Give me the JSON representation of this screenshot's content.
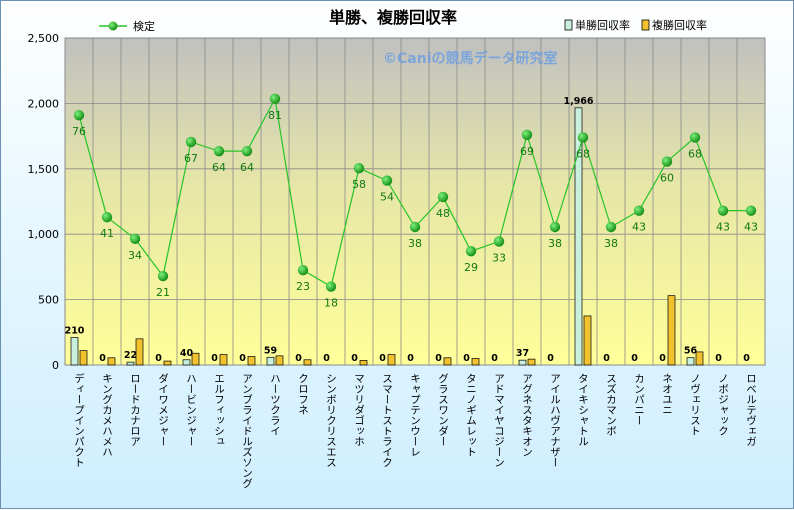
{
  "chart_data": {
    "type": "bar",
    "title": "単勝、複勝回収率",
    "watermark": "©Caniの競馬データ研究室",
    "ylim": [
      0,
      2500
    ],
    "yticks": [
      0,
      500,
      1000,
      1500,
      2000,
      2500
    ],
    "ytick_labels": [
      "0",
      "500",
      "1,000",
      "1,500",
      "2,000",
      "2,500"
    ],
    "grid": true,
    "legend_position": "top",
    "categories": [
      "ディープインパクト",
      "キングカメハメハ",
      "ロードカナロア",
      "ダイワメジャー",
      "ハービンジャー",
      "エルフィッシュ",
      "アンブライドルズソング",
      "ハーツクライ",
      "クロフネ",
      "シンボリクリスエス",
      "マツリダゴッホ",
      "スマートストライク",
      "キャプテンウーレ",
      "グラスワンダー",
      "タニノギムレット",
      "アドマイヤコジーン",
      "アグネスタキオン",
      "アイルハヴアナザー",
      "タイキシャトル",
      "スズカマンボ",
      "カンパニー",
      "ネオユニ",
      "ノヴェリスト",
      "ノボジャック",
      "ロベルテヴェガ"
    ],
    "series": [
      {
        "name": "単勝回収率",
        "kind": "bar",
        "color": "#c8f0dc",
        "values": [
          210,
          0,
          22,
          0,
          40,
          0,
          0,
          59,
          0,
          0,
          0,
          0,
          0,
          0,
          0,
          0,
          37,
          0,
          1966,
          0,
          0,
          0,
          56,
          0,
          0
        ],
        "labels": [
          "210",
          "0",
          "22",
          "0",
          "40",
          "0",
          "0",
          "59",
          "0",
          "0",
          "0",
          "0",
          "0",
          "0",
          "0",
          "0",
          "37",
          "0",
          "1,966",
          "0",
          "0",
          "0",
          "56",
          "0",
          "0"
        ]
      },
      {
        "name": "複勝回収率",
        "kind": "bar",
        "color": "#f2c12e",
        "values": [
          110,
          55,
          200,
          30,
          90,
          80,
          65,
          70,
          40,
          0,
          35,
          80,
          0,
          55,
          50,
          0,
          45,
          0,
          375,
          0,
          0,
          530,
          100,
          0,
          0
        ]
      },
      {
        "name": "検定",
        "kind": "line",
        "axis": "secondary",
        "color": "#27c427",
        "marker_color": "#169a16",
        "values": [
          76,
          41,
          34,
          21,
          67,
          64,
          64,
          81,
          23,
          18,
          58,
          54,
          38,
          48,
          29,
          33,
          69,
          38,
          68,
          38,
          43,
          60,
          68,
          43,
          43
        ],
        "plot_heights": [
          1910,
          1130,
          965,
          680,
          1705,
          1635,
          1635,
          2035,
          725,
          600,
          1505,
          1410,
          1055,
          1285,
          870,
          945,
          1760,
          1055,
          1740,
          1055,
          1180,
          1555,
          1740,
          1180,
          1180
        ]
      }
    ]
  }
}
